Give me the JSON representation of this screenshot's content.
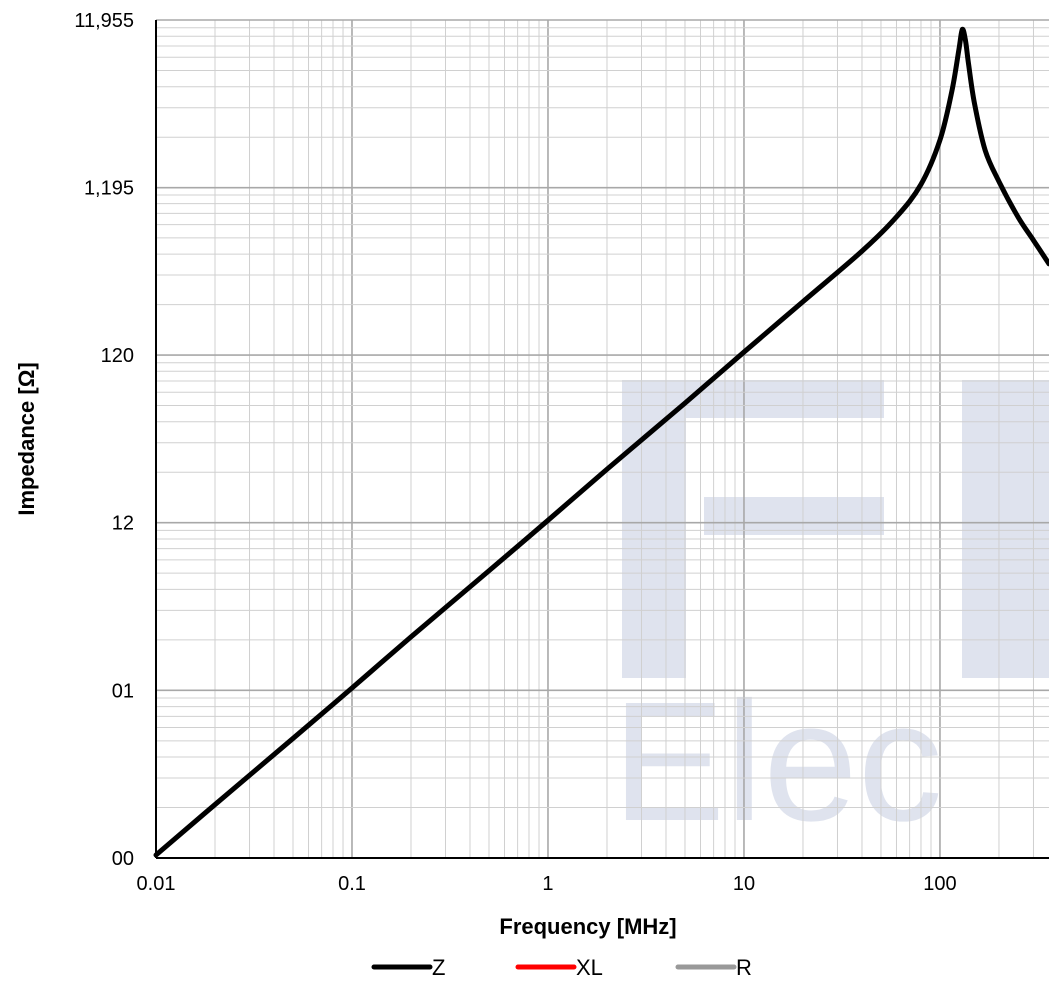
{
  "chart_data": {
    "type": "line",
    "xlabel": "Frequency  [MHz]",
    "ylabel": "Impedance [Ω]",
    "x_scale": "log",
    "y_scale": "log",
    "xlim": [
      0.01,
      360
    ],
    "ylim": [
      0.12,
      11955
    ],
    "x_ticks": [
      {
        "value": 0.01,
        "label": "0.01"
      },
      {
        "value": 0.1,
        "label": "0.1"
      },
      {
        "value": 1,
        "label": "1"
      },
      {
        "value": 10,
        "label": "10"
      },
      {
        "value": 100,
        "label": "100"
      }
    ],
    "y_ticks": [
      {
        "value": 0.12,
        "label": "00"
      },
      {
        "value": 1.2,
        "label": "01"
      },
      {
        "value": 12,
        "label": "12"
      },
      {
        "value": 120,
        "label": "120"
      },
      {
        "value": 1195,
        "label": "1,195"
      },
      {
        "value": 11955,
        "label": "11,955"
      }
    ],
    "grid": true,
    "legend_position": "bottom",
    "series": [
      {
        "name": "Z",
        "color": "#000000",
        "x": [
          0.01,
          0.02,
          0.05,
          0.1,
          0.2,
          0.5,
          1,
          2,
          5,
          10,
          20,
          40,
          60,
          80,
          100,
          115,
          125,
          130,
          135,
          140,
          150,
          170,
          200,
          250,
          300,
          360
        ],
        "y": [
          0.125,
          0.25,
          0.62,
          1.24,
          2.5,
          6.2,
          12.4,
          25,
          62,
          125,
          250,
          500,
          800,
          1250,
          2300,
          4500,
          8000,
          10500,
          9000,
          6500,
          3800,
          2000,
          1300,
          800,
          580,
          420
        ]
      },
      {
        "name": "XL",
        "color": "#ff0000",
        "x": [],
        "y": []
      },
      {
        "name": "R",
        "color": "#999999",
        "x": [],
        "y": []
      }
    ],
    "watermark": "Elec"
  }
}
